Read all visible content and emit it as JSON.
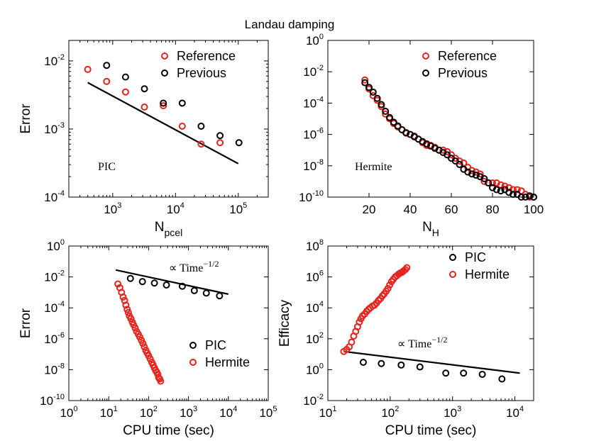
{
  "figure_title": "Landau damping",
  "chart_data": [
    {
      "id": "p1",
      "type": "scatter",
      "xscale": "log",
      "yscale": "log",
      "xlim": [
        200,
        300000
      ],
      "ylim": [
        0.0001,
        0.02
      ],
      "xticks": [
        {
          "v": 1000,
          "base": "10",
          "exp": "3"
        },
        {
          "v": 10000,
          "base": "10",
          "exp": "4"
        },
        {
          "v": 100000,
          "base": "10",
          "exp": "5"
        }
      ],
      "yticks": [
        {
          "v": 0.0001,
          "base": "10",
          "exp": "-4"
        },
        {
          "v": 0.001,
          "base": "10",
          "exp": "-3"
        },
        {
          "v": 0.01,
          "base": "10",
          "exp": "-2"
        }
      ],
      "xlabel": {
        "main": "N",
        "sub": "pcel"
      },
      "ylabel": "Error",
      "legend": {
        "placement": "top-right",
        "entries": [
          "Reference",
          "Previous"
        ]
      },
      "annotation": "PIC",
      "series": [
        {
          "name": "Reference",
          "color": "#e8221a",
          "x": [
            400,
            800,
            1600,
            3200,
            6400,
            12800,
            25600,
            51200
          ],
          "y": [
            0.0075,
            0.005,
            0.0035,
            0.0021,
            0.0022,
            0.0011,
            0.0006,
            0.00063
          ]
        },
        {
          "name": "Previous",
          "color": "#000000",
          "x": [
            800,
            1600,
            3200,
            6400,
            12800,
            25600,
            51200,
            102400
          ],
          "y": [
            0.0086,
            0.0058,
            0.0039,
            0.0024,
            0.0024,
            0.0011,
            0.0008,
            0.00063
          ]
        }
      ],
      "fit_line": {
        "x": [
          400,
          100000
        ],
        "y": [
          0.0048,
          0.00031
        ]
      }
    },
    {
      "id": "p2",
      "type": "scatter",
      "xscale": "linear",
      "yscale": "log",
      "xlim": [
        0,
        100
      ],
      "ylim": [
        1e-10,
        1
      ],
      "xticks": [
        {
          "v": 20,
          "label": "20"
        },
        {
          "v": 40,
          "label": "40"
        },
        {
          "v": 60,
          "label": "60"
        },
        {
          "v": 80,
          "label": "80"
        },
        {
          "v": 100,
          "label": "100"
        }
      ],
      "yticks": [
        {
          "v": 1e-10,
          "base": "10",
          "exp": "-10"
        },
        {
          "v": 1e-08,
          "base": "10",
          "exp": "-8"
        },
        {
          "v": 1e-06,
          "base": "10",
          "exp": "-6"
        },
        {
          "v": 0.0001,
          "base": "10",
          "exp": "-4"
        },
        {
          "v": 0.01,
          "base": "10",
          "exp": "-2"
        },
        {
          "v": 1,
          "base": "10",
          "exp": "0"
        }
      ],
      "xlabel": {
        "main": "N",
        "sub": "H"
      },
      "ylabel": "",
      "legend": {
        "placement": "top-right",
        "entries": [
          "Reference",
          "Previous"
        ]
      },
      "annotation": "Hermite",
      "series": [
        {
          "name": "Reference",
          "color": "#e8221a",
          "x": [
            18,
            20,
            22,
            24,
            26,
            28,
            30,
            32,
            34,
            36,
            38,
            40,
            42,
            44,
            46,
            48,
            50,
            52,
            54,
            56,
            58,
            60,
            62,
            64,
            66,
            68,
            70,
            72,
            74,
            76,
            78,
            80,
            82,
            84,
            86,
            88,
            90,
            92,
            94,
            96,
            98,
            100
          ],
          "y": [
            0.003,
            0.0008,
            0.0003,
            0.00015,
            6e-05,
            2e-05,
            1e-05,
            5e-06,
            3e-06,
            2e-06,
            1.2e-06,
            1e-06,
            8e-07,
            5e-07,
            3e-07,
            2e-07,
            2e-07,
            1.5e-07,
            1e-07,
            1e-07,
            8e-08,
            5e-08,
            3e-08,
            2e-08,
            1.5e-08,
            8e-09,
            5e-09,
            4e-09,
            3e-09,
            1e-09,
            8e-10,
            8e-10,
            8e-10,
            6e-10,
            5e-10,
            4e-10,
            3e-10,
            3e-10,
            2.5e-10,
            1.5e-10,
            1e-10,
            1e-10
          ]
        },
        {
          "name": "Previous",
          "color": "#000000",
          "x": [
            18,
            20,
            22,
            24,
            26,
            28,
            30,
            32,
            34,
            36,
            38,
            40,
            42,
            44,
            46,
            48,
            50,
            52,
            54,
            56,
            58,
            60,
            62,
            64,
            66,
            68,
            70,
            72,
            74,
            76,
            78,
            80,
            82,
            84,
            86,
            88,
            90,
            92,
            94,
            96,
            98,
            100
          ],
          "y": [
            0.002,
            0.001,
            0.0005,
            0.0002,
            8e-05,
            3e-05,
            1.2e-05,
            6e-06,
            3.5e-06,
            2e-06,
            1.3e-06,
            1e-06,
            7e-07,
            5e-07,
            3.5e-07,
            2.5e-07,
            1.8e-07,
            1.3e-07,
            1e-07,
            7e-08,
            5e-08,
            3e-08,
            2e-08,
            1.2e-08,
            6e-09,
            4e-09,
            3e-09,
            2.5e-09,
            2e-09,
            1.5e-09,
            8e-10,
            4e-10,
            3e-10,
            2.5e-10,
            3e-10,
            2e-10,
            1.5e-10,
            1.5e-10,
            1e-10,
            1e-10,
            1.2e-10,
            1e-10
          ]
        }
      ]
    },
    {
      "id": "p3",
      "type": "scatter",
      "xscale": "log",
      "yscale": "log",
      "xlim": [
        1,
        100000
      ],
      "ylim": [
        1e-10,
        1
      ],
      "xticks": [
        {
          "v": 1,
          "base": "10",
          "exp": "0"
        },
        {
          "v": 10,
          "base": "10",
          "exp": "1"
        },
        {
          "v": 100,
          "base": "10",
          "exp": "2"
        },
        {
          "v": 1000,
          "base": "10",
          "exp": "3"
        },
        {
          "v": 10000,
          "base": "10",
          "exp": "4"
        },
        {
          "v": 100000,
          "base": "10",
          "exp": "5"
        }
      ],
      "yticks": [
        {
          "v": 1e-10,
          "base": "10",
          "exp": "-10"
        },
        {
          "v": 1e-08,
          "base": "10",
          "exp": "-8"
        },
        {
          "v": 1e-06,
          "base": "10",
          "exp": "-6"
        },
        {
          "v": 0.0001,
          "base": "10",
          "exp": "-4"
        },
        {
          "v": 0.01,
          "base": "10",
          "exp": "-2"
        },
        {
          "v": 1,
          "base": "10",
          "exp": "0"
        }
      ],
      "xlabel": {
        "main": "CPU time (sec)",
        "sub": ""
      },
      "ylabel": "Error",
      "legend": {
        "placement": "lower-right",
        "entries": [
          "PIC",
          "Hermite"
        ]
      },
      "annotation": "∝ Time",
      "annotation_exp": "−1/2",
      "series": [
        {
          "name": "PIC",
          "color": "#000000",
          "x": [
            35,
            70,
            140,
            280,
            700,
            1400,
            2800,
            6000
          ],
          "y": [
            0.008,
            0.005,
            0.004,
            0.003,
            0.0025,
            0.0013,
            0.0009,
            0.0006
          ]
        },
        {
          "name": "Hermite",
          "color": "#e8221a",
          "x": [
            17,
            19,
            21,
            23,
            25,
            27,
            29,
            31,
            33,
            36,
            39,
            42,
            46,
            50,
            55,
            60,
            66,
            72,
            78,
            85,
            92,
            100,
            110,
            120,
            130,
            140,
            150,
            160,
            170,
            180,
            190,
            200
          ],
          "y": [
            0.0035,
            0.002,
            0.001,
            0.0005,
            0.0003,
            0.00015,
            8e-05,
            5e-05,
            3e-05,
            2e-05,
            1.2e-05,
            8e-06,
            5e-06,
            3e-06,
            2e-06,
            1.3e-06,
            8e-07,
            5e-07,
            3e-07,
            1.8e-07,
            1.2e-07,
            8e-08,
            5e-08,
            3e-08,
            2e-08,
            1.3e-08,
            9e-09,
            7e-09,
            5e-09,
            3e-09,
            2.5e-09,
            1.8e-09
          ]
        }
      ],
      "fit_line": {
        "x": [
          15,
          10000
        ],
        "y": [
          0.028,
          0.00077
        ]
      }
    },
    {
      "id": "p4",
      "type": "scatter",
      "xscale": "log",
      "yscale": "log",
      "xlim": [
        10,
        20000
      ],
      "ylim": [
        0.01,
        100000000
      ],
      "xticks": [
        {
          "v": 10,
          "base": "10",
          "exp": "1"
        },
        {
          "v": 100,
          "base": "10",
          "exp": "2"
        },
        {
          "v": 1000,
          "base": "10",
          "exp": "3"
        },
        {
          "v": 10000,
          "base": "10",
          "exp": "4"
        }
      ],
      "yticks": [
        {
          "v": 0.01,
          "base": "10",
          "exp": "-2"
        },
        {
          "v": 1,
          "base": "10",
          "exp": "0"
        },
        {
          "v": 100,
          "base": "10",
          "exp": "2"
        },
        {
          "v": 10000,
          "base": "10",
          "exp": "4"
        },
        {
          "v": 1000000,
          "base": "10",
          "exp": "6"
        },
        {
          "v": 100000000,
          "base": "10",
          "exp": "8"
        }
      ],
      "xlabel": {
        "main": "CPU time (sec)",
        "sub": ""
      },
      "ylabel": "Efficacy",
      "legend": {
        "placement": "top-right",
        "entries": [
          "PIC",
          "Hermite"
        ]
      },
      "annotation": "∝ Time",
      "annotation_exp": "−1/2",
      "series": [
        {
          "name": "PIC",
          "color": "#000000",
          "x": [
            37,
            72,
            150,
            300,
            780,
            1500,
            3000,
            6200
          ],
          "y": [
            3,
            2.5,
            2,
            1.5,
            0.6,
            0.6,
            0.5,
            0.25
          ]
        },
        {
          "name": "Hermite",
          "color": "#e8221a",
          "x": [
            18,
            20,
            22,
            24,
            26,
            28,
            30,
            32,
            34,
            36,
            39,
            42,
            45,
            48,
            52,
            56,
            60,
            65,
            70,
            75,
            80,
            86,
            92,
            98,
            105,
            112,
            120,
            128,
            136,
            145,
            155,
            165,
            175,
            185
          ],
          "y": [
            15,
            20,
            30,
            60,
            150,
            300,
            600,
            1200,
            2000,
            3000,
            4000,
            6000,
            8000,
            10000,
            13000,
            15000,
            20000,
            30000,
            40000,
            60000,
            80000,
            120000,
            180000,
            300000,
            500000,
            700000,
            1000000,
            1200000,
            1500000,
            1800000,
            2000000,
            2500000,
            3000000,
            4000000
          ]
        }
      ],
      "fit_line": {
        "x": [
          18,
          12000
        ],
        "y": [
          15,
          0.6
        ]
      }
    }
  ]
}
